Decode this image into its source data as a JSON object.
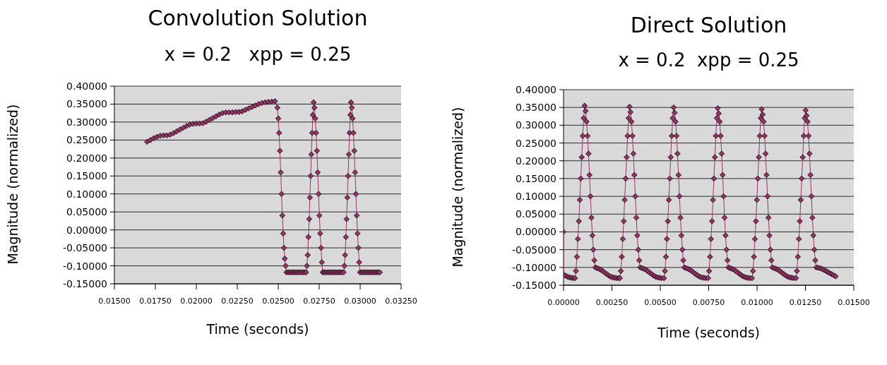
{
  "chart_data": [
    {
      "type": "line",
      "title": "Convolution Solution",
      "subtitle": "x = 0.2   xpp = 0.25",
      "xlabel": "Time (seconds)",
      "ylabel": "Magnitude (normalized)",
      "grid": "y",
      "marker": "diamond",
      "line_style": "solid",
      "xlim": [
        0.015,
        0.0325
      ],
      "xticks": [
        {
          "value": 0.015,
          "label": "0.01500"
        },
        {
          "value": 0.0175,
          "label": "0.01750"
        },
        {
          "value": 0.02,
          "label": "0.02000"
        },
        {
          "value": 0.0225,
          "label": "0.02250"
        },
        {
          "value": 0.025,
          "label": "0.02500"
        },
        {
          "value": 0.0275,
          "label": "0.02750"
        },
        {
          "value": 0.03,
          "label": "0.03000"
        },
        {
          "value": 0.0325,
          "label": "0.03250"
        }
      ],
      "ylim": [
        -0.15,
        0.4
      ],
      "yticks": [
        {
          "value": -0.15,
          "label": "-0.15000"
        },
        {
          "value": -0.1,
          "label": "-0.10000"
        },
        {
          "value": -0.05,
          "label": "-0.05000"
        },
        {
          "value": 0,
          "label": "0.00000"
        },
        {
          "value": 0.05,
          "label": "0.05000"
        },
        {
          "value": 0.1,
          "label": "0.10000"
        },
        {
          "value": 0.15,
          "label": "0.15000"
        },
        {
          "value": 0.2,
          "label": "0.20000"
        },
        {
          "value": 0.25,
          "label": "0.25000"
        },
        {
          "value": 0.3,
          "label": "0.30000"
        },
        {
          "value": 0.35,
          "label": "0.35000"
        },
        {
          "value": 0.4,
          "label": "0.40000"
        }
      ],
      "series": [
        {
          "color": "#993366",
          "x": [
            0.017,
            0.0172,
            0.0174,
            0.0176,
            0.0178,
            0.018,
            0.0182,
            0.0184,
            0.0186,
            0.0188,
            0.019,
            0.0192,
            0.0194,
            0.0196,
            0.0198,
            0.02,
            0.0202,
            0.0204,
            0.0206,
            0.0208,
            0.021,
            0.0212,
            0.0214,
            0.0216,
            0.0218,
            0.022,
            0.0222,
            0.0224,
            0.0226,
            0.0228,
            0.023,
            0.0232,
            0.0234,
            0.0236,
            0.0238,
            0.024,
            0.0242,
            0.0244,
            0.0246,
            0.0248,
            0.02495,
            0.025,
            0.02505,
            0.0251,
            0.02515,
            0.0252,
            0.02525,
            0.0253,
            0.02535,
            0.0254,
            0.02545,
            0.0255,
            0.0256,
            0.0257,
            0.0258,
            0.0259,
            0.026,
            0.0261,
            0.0262,
            0.0263,
            0.0264,
            0.0265,
            0.0266,
            0.0267,
            0.02675,
            0.0268,
            0.02684,
            0.02689,
            0.02693,
            0.02698,
            0.02702,
            0.02707,
            0.02711,
            0.02716,
            0.02721,
            0.02726,
            0.02731,
            0.02736,
            0.02741,
            0.02746,
            0.02751,
            0.02756,
            0.02761,
            0.02766,
            0.02771,
            0.0278,
            0.0279,
            0.028,
            0.0281,
            0.0282,
            0.0283,
            0.0284,
            0.0285,
            0.0286,
            0.0287,
            0.0288,
            0.0289,
            0.02899,
            0.02904,
            0.02908,
            0.02913,
            0.02917,
            0.02922,
            0.02926,
            0.02931,
            0.02935,
            0.0294,
            0.02944,
            0.02949,
            0.02954,
            0.02959,
            0.02964,
            0.02969,
            0.02974,
            0.02979,
            0.02984,
            0.02989,
            0.02994,
            0.02999,
            0.0301,
            0.0302,
            0.0303,
            0.0304,
            0.0305,
            0.0306,
            0.0307,
            0.0308,
            0.0309,
            0.031,
            0.0311,
            0.0312
          ],
          "values": [
            0.245,
            0.25,
            0.255,
            0.259,
            0.262,
            0.263,
            0.263,
            0.265,
            0.269,
            0.274,
            0.279,
            0.284,
            0.289,
            0.293,
            0.295,
            0.296,
            0.296,
            0.297,
            0.301,
            0.306,
            0.311,
            0.316,
            0.321,
            0.325,
            0.327,
            0.327,
            0.327,
            0.328,
            0.328,
            0.33,
            0.334,
            0.338,
            0.342,
            0.346,
            0.35,
            0.353,
            0.355,
            0.356,
            0.357,
            0.358,
            0.34,
            0.31,
            0.27,
            0.22,
            0.16,
            0.1,
            0.04,
            -0.01,
            -0.05,
            -0.08,
            -0.1,
            -0.118,
            -0.118,
            -0.118,
            -0.118,
            -0.118,
            -0.118,
            -0.118,
            -0.118,
            -0.118,
            -0.118,
            -0.118,
            -0.118,
            -0.118,
            -0.1,
            -0.07,
            -0.02,
            0.03,
            0.09,
            0.15,
            0.21,
            0.27,
            0.32,
            0.355,
            0.34,
            0.31,
            0.27,
            0.22,
            0.16,
            0.1,
            0.04,
            -0.01,
            -0.05,
            -0.09,
            -0.118,
            -0.118,
            -0.118,
            -0.118,
            -0.118,
            -0.118,
            -0.118,
            -0.118,
            -0.118,
            -0.118,
            -0.118,
            -0.118,
            -0.118,
            -0.118,
            -0.1,
            -0.07,
            -0.02,
            0.03,
            0.09,
            0.15,
            0.21,
            0.27,
            0.32,
            0.355,
            0.34,
            0.31,
            0.27,
            0.22,
            0.16,
            0.1,
            0.04,
            -0.01,
            -0.05,
            -0.09,
            -0.118,
            -0.118,
            -0.118,
            -0.118,
            -0.118,
            -0.118,
            -0.118,
            -0.118,
            -0.118,
            -0.118,
            -0.118,
            -0.118,
            -0.118
          ]
        }
      ]
    },
    {
      "type": "line",
      "title": "Direct Solution",
      "subtitle": "x = 0.2  xpp = 0.25",
      "xlabel": "Time (seconds)",
      "ylabel": "Magnitude (normalized)",
      "grid": "y",
      "marker": "diamond",
      "line_style": "solid",
      "xlim": [
        0,
        0.015
      ],
      "xticks": [
        {
          "value": 0,
          "label": "0.00000"
        },
        {
          "value": 0.0025,
          "label": "0.00250"
        },
        {
          "value": 0.005,
          "label": "0.00500"
        },
        {
          "value": 0.0075,
          "label": "0.00750"
        },
        {
          "value": 0.01,
          "label": "0.01000"
        },
        {
          "value": 0.0125,
          "label": "0.01250"
        },
        {
          "value": 0.015,
          "label": "0.01500"
        }
      ],
      "ylim": [
        -0.15,
        0.4
      ],
      "yticks": [
        {
          "value": -0.15,
          "label": "-0.15000"
        },
        {
          "value": -0.1,
          "label": "-0.10000"
        },
        {
          "value": -0.05,
          "label": "-0.05000"
        },
        {
          "value": 0,
          "label": "0.00000"
        },
        {
          "value": 0.05,
          "label": "0.05000"
        },
        {
          "value": 0.1,
          "label": "0.10000"
        },
        {
          "value": 0.15,
          "label": "0.15000"
        },
        {
          "value": 0.2,
          "label": "0.20000"
        },
        {
          "value": 0.25,
          "label": "0.25000"
        },
        {
          "value": 0.3,
          "label": "0.30000"
        },
        {
          "value": 0.35,
          "label": "0.35000"
        },
        {
          "value": 0.4,
          "label": "0.40000"
        }
      ],
      "series": [
        {
          "color": "#993366",
          "x": [
            0,
            0,
            0.0001,
            0.0002,
            0.0003,
            0.0004,
            0.0005,
            0.00059,
            0.00064,
            0.00069,
            0.00074,
            0.00079,
            0.00084,
            0.00089,
            0.00094,
            0.00099,
            0.00104,
            0.00109,
            0.00114,
            0.00119,
            0.00124,
            0.00129,
            0.00134,
            0.00139,
            0.00144,
            0.00149,
            0.00154,
            0.00159,
            0.00164,
            0.00174,
            0.00184,
            0.00194,
            0.00204,
            0.00214,
            0.00224,
            0.00234,
            0.00244,
            0.00254,
            0.00264,
            0.00274,
            0.00284,
            0.00291,
            0.00296,
            0.00301,
            0.00306,
            0.00311,
            0.00316,
            0.00321,
            0.00326,
            0.00331,
            0.00336,
            0.00341,
            0.00346,
            0.00351,
            0.00356,
            0.00361,
            0.00366,
            0.00371,
            0.00376,
            0.00381,
            0.00386,
            0.00391,
            0.00396,
            0.00406,
            0.00416,
            0.00426,
            0.00436,
            0.00446,
            0.00456,
            0.00466,
            0.00476,
            0.00486,
            0.00496,
            0.00506,
            0.00519,
            0.00524,
            0.00529,
            0.00534,
            0.00539,
            0.00544,
            0.00549,
            0.00554,
            0.00559,
            0.00564,
            0.00569,
            0.00574,
            0.00579,
            0.00584,
            0.00589,
            0.00594,
            0.00599,
            0.00604,
            0.00609,
            0.00614,
            0.00619,
            0.00624,
            0.00634,
            0.00644,
            0.00654,
            0.00664,
            0.00674,
            0.00684,
            0.00694,
            0.00704,
            0.00714,
            0.00724,
            0.00734,
            0.00747,
            0.00752,
            0.00757,
            0.00762,
            0.00767,
            0.00772,
            0.00777,
            0.00782,
            0.00787,
            0.00792,
            0.00797,
            0.00802,
            0.00807,
            0.00812,
            0.00817,
            0.00822,
            0.00827,
            0.00832,
            0.00837,
            0.00842,
            0.00847,
            0.00852,
            0.00862,
            0.00872,
            0.00882,
            0.00892,
            0.00902,
            0.00912,
            0.00922,
            0.00932,
            0.00942,
            0.00952,
            0.00962,
            0.00974,
            0.00979,
            0.00984,
            0.00989,
            0.00994,
            0.00999,
            0.01004,
            0.01009,
            0.01014,
            0.01019,
            0.01024,
            0.01029,
            0.01034,
            0.01039,
            0.01044,
            0.01049,
            0.01054,
            0.01059,
            0.01064,
            0.01069,
            0.01074,
            0.01079,
            0.01089,
            0.01099,
            0.01109,
            0.01119,
            0.01129,
            0.01139,
            0.01149,
            0.01159,
            0.01169,
            0.01179,
            0.01189,
            0.01201,
            0.01206,
            0.01211,
            0.01216,
            0.01221,
            0.01226,
            0.01231,
            0.01236,
            0.01241,
            0.01246,
            0.01251,
            0.01256,
            0.01261,
            0.01266,
            0.01271,
            0.01276,
            0.01281,
            0.01286,
            0.01291,
            0.01296,
            0.01301,
            0.01306,
            0.01316,
            0.01326,
            0.01336,
            0.01346,
            0.01356,
            0.01366,
            0.01376,
            0.01386,
            0.01396,
            0.01406
          ],
          "values": [
            0,
            -0.12,
            -0.123,
            -0.126,
            -0.128,
            -0.129,
            -0.13,
            -0.13,
            -0.11,
            -0.07,
            -0.02,
            0.03,
            0.09,
            0.15,
            0.21,
            0.27,
            0.32,
            0.355,
            0.34,
            0.31,
            0.27,
            0.22,
            0.16,
            0.1,
            0.04,
            -0.01,
            -0.05,
            -0.08,
            -0.1,
            -0.102,
            -0.104,
            -0.107,
            -0.111,
            -0.115,
            -0.119,
            -0.123,
            -0.126,
            -0.128,
            -0.129,
            -0.13,
            -0.13,
            -0.13,
            -0.11,
            -0.07,
            -0.02,
            0.03,
            0.09,
            0.15,
            0.21,
            0.27,
            0.32,
            0.352,
            0.337,
            0.31,
            0.27,
            0.22,
            0.16,
            0.1,
            0.04,
            -0.01,
            -0.05,
            -0.08,
            -0.1,
            -0.102,
            -0.104,
            -0.107,
            -0.111,
            -0.115,
            -0.119,
            -0.123,
            -0.126,
            -0.128,
            -0.129,
            -0.13,
            -0.13,
            -0.11,
            -0.07,
            -0.02,
            0.03,
            0.09,
            0.15,
            0.21,
            0.27,
            0.32,
            0.35,
            0.335,
            0.31,
            0.27,
            0.22,
            0.16,
            0.1,
            0.04,
            -0.01,
            -0.05,
            -0.08,
            -0.1,
            -0.102,
            -0.104,
            -0.107,
            -0.111,
            -0.115,
            -0.119,
            -0.123,
            -0.126,
            -0.128,
            -0.129,
            -0.13,
            -0.13,
            -0.11,
            -0.07,
            -0.02,
            0.03,
            0.09,
            0.15,
            0.21,
            0.27,
            0.32,
            0.348,
            0.333,
            0.31,
            0.27,
            0.22,
            0.16,
            0.1,
            0.04,
            -0.01,
            -0.05,
            -0.08,
            -0.1,
            -0.102,
            -0.104,
            -0.107,
            -0.111,
            -0.115,
            -0.119,
            -0.123,
            -0.126,
            -0.128,
            -0.129,
            -0.13,
            -0.13,
            -0.11,
            -0.07,
            -0.02,
            0.03,
            0.09,
            0.15,
            0.21,
            0.27,
            0.32,
            0.345,
            0.33,
            0.31,
            0.27,
            0.22,
            0.16,
            0.1,
            0.04,
            -0.01,
            -0.05,
            -0.08,
            -0.1,
            -0.102,
            -0.104,
            -0.107,
            -0.111,
            -0.115,
            -0.119,
            -0.123,
            -0.126,
            -0.128,
            -0.129,
            -0.13,
            -0.13,
            -0.11,
            -0.07,
            -0.02,
            0.03,
            0.09,
            0.15,
            0.21,
            0.27,
            0.32,
            0.342,
            0.327,
            0.31,
            0.27,
            0.22,
            0.16,
            0.1,
            0.04,
            -0.01,
            -0.05,
            -0.08,
            -0.1,
            -0.101,
            -0.102,
            -0.104,
            -0.107,
            -0.11,
            -0.113,
            -0.116,
            -0.119,
            -0.122,
            -0.125
          ]
        }
      ]
    }
  ]
}
